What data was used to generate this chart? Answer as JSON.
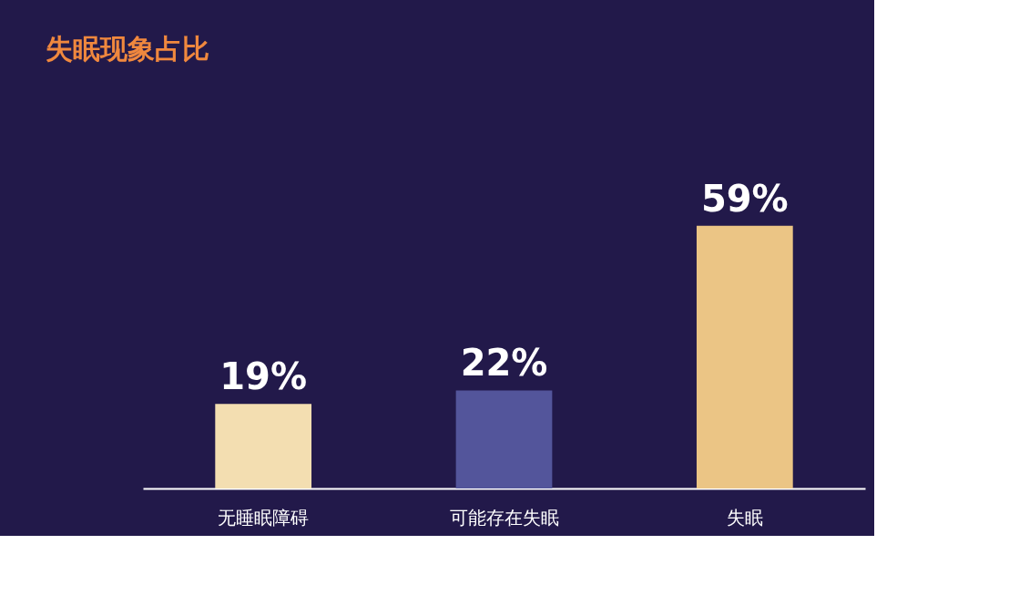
{
  "chart_data": {
    "type": "bar",
    "title": "失眠现象占比",
    "categories": [
      "无睡眠障碍",
      "可能存在失眠",
      "失眠"
    ],
    "values": [
      19,
      22,
      59
    ],
    "colors": [
      "#f3deb1",
      "#53559b",
      "#ebc585"
    ],
    "value_labels": [
      "19%",
      "22%",
      "59%"
    ],
    "grid": false,
    "legend": false
  }
}
